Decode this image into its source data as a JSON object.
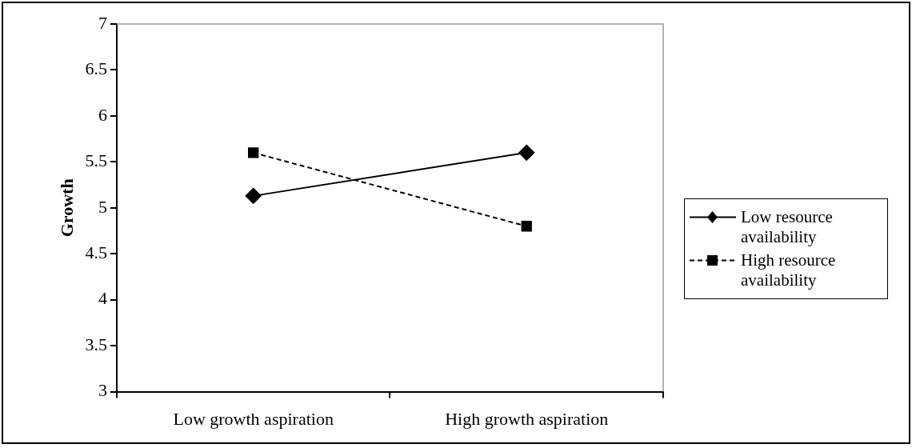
{
  "chart_data": {
    "type": "line",
    "ylabel": "Growth",
    "categories": [
      "Low growth aspiration",
      "High growth aspiration"
    ],
    "series": [
      {
        "name": "Low resource availability",
        "color": "#000000",
        "values": [
          5.13,
          5.6
        ],
        "marker": "diamond",
        "line_style": "solid"
      },
      {
        "name": "High resource availability",
        "color": "#000000",
        "values": [
          5.6,
          4.8
        ],
        "marker": "square",
        "line_style": "dashed"
      }
    ],
    "ylim": [
      3,
      7
    ],
    "yticks": [
      3,
      3.5,
      4,
      4.5,
      5,
      5.5,
      6,
      6.5,
      7
    ],
    "grid": false,
    "legend": "right"
  }
}
